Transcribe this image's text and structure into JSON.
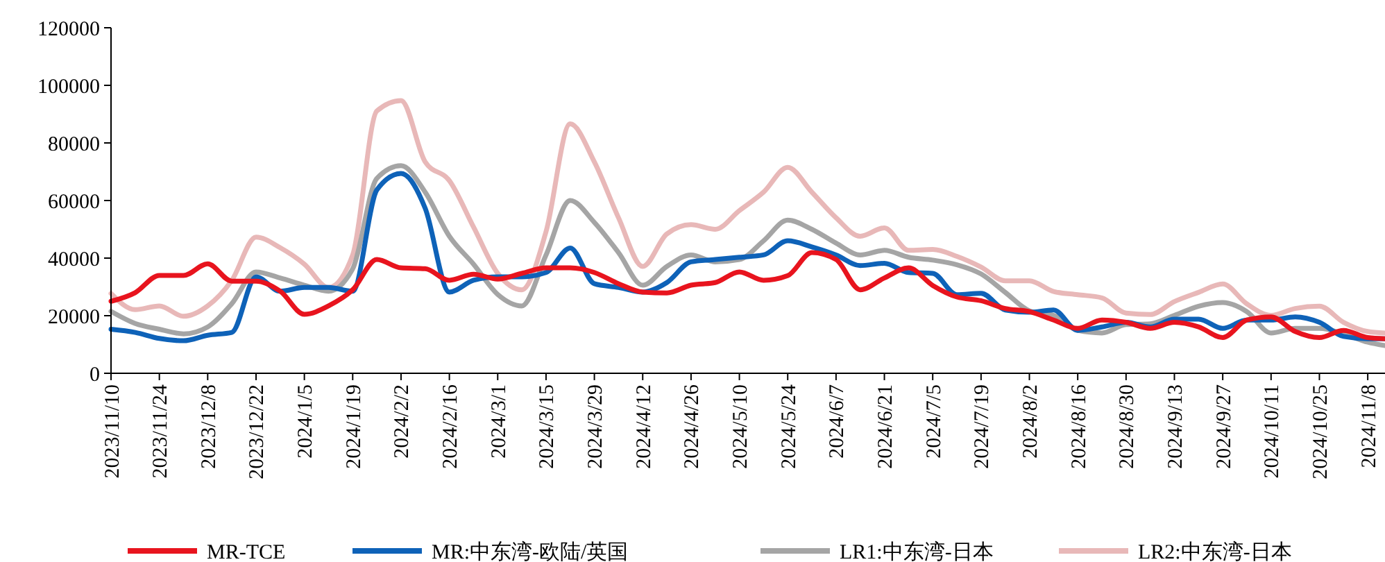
{
  "chart_data": {
    "type": "line",
    "x": [
      "2023-11-10",
      "2023-11-17",
      "2023-11-24",
      "2023-12-01",
      "2023-12-08",
      "2023-12-15",
      "2023-12-22",
      "2023-12-29",
      "2024-01-05",
      "2024-01-12",
      "2024-01-19",
      "2024-01-26",
      "2024-02-02",
      "2024-02-09",
      "2024-02-16",
      "2024-02-23",
      "2024-03-01",
      "2024-03-08",
      "2024-03-15",
      "2024-03-22",
      "2024-03-29",
      "2024-04-05",
      "2024-04-12",
      "2024-04-19",
      "2024-04-26",
      "2024-05-03",
      "2024-05-10",
      "2024-05-17",
      "2024-05-24",
      "2024-05-31",
      "2024-06-07",
      "2024-06-14",
      "2024-06-21",
      "2024-06-28",
      "2024-07-05",
      "2024-07-12",
      "2024-07-19",
      "2024-07-26",
      "2024-08-02",
      "2024-08-09",
      "2024-08-16",
      "2024-08-23",
      "2024-08-30",
      "2024-09-06",
      "2024-09-13",
      "2024-09-20",
      "2024-09-27",
      "2024-10-04",
      "2024-10-11",
      "2024-10-18",
      "2024-10-25",
      "2024-11-01",
      "2024-11-08",
      "2024-11-13"
    ],
    "series": [
      {
        "name": "MR-TCE",
        "color": "#e8141e",
        "values": [
          25000,
          28000,
          34000,
          34000,
          38000,
          32000,
          32000,
          28500,
          20500,
          23400,
          29000,
          39500,
          36600,
          36300,
          32300,
          34400,
          32700,
          34700,
          36600,
          36600,
          35000,
          31100,
          28200,
          27900,
          30600,
          31500,
          35200,
          32300,
          33900,
          41900,
          39500,
          29000,
          33100,
          36600,
          30500,
          26500,
          25200,
          22500,
          21400,
          18500,
          15600,
          18500,
          17700,
          15600,
          17700,
          16100,
          12400,
          18500,
          19600,
          14500,
          12400,
          14900,
          12400,
          12000
        ]
      },
      {
        "name": "MR:中东湾-欧陆/英国",
        "color": "#0e62b8",
        "values": [
          15300,
          14200,
          12100,
          11300,
          13200,
          14200,
          33500,
          28500,
          29800,
          29800,
          28500,
          63700,
          69400,
          57300,
          28200,
          32300,
          33500,
          33500,
          35000,
          43500,
          31100,
          29800,
          28200,
          31500,
          38700,
          39500,
          40300,
          41100,
          46000,
          43900,
          41100,
          37400,
          38200,
          35000,
          34700,
          27300,
          27800,
          22000,
          21200,
          22000,
          14900,
          16100,
          17700,
          16100,
          18800,
          18800,
          15600,
          18500,
          18500,
          19600,
          17700,
          12800,
          12000,
          12000
        ]
      },
      {
        "name": "LR1:中东湾-日本",
        "color": "#a5a5a5",
        "values": [
          21500,
          17300,
          15300,
          13700,
          16100,
          24200,
          35200,
          33100,
          30600,
          28500,
          36300,
          67700,
          72100,
          62900,
          47600,
          37900,
          27400,
          23400,
          41100,
          60000,
          52400,
          41900,
          30600,
          37100,
          41100,
          38700,
          39500,
          46000,
          53200,
          50000,
          45200,
          41100,
          42700,
          40300,
          39300,
          37700,
          34500,
          28100,
          21700,
          20100,
          14900,
          14000,
          16900,
          17200,
          20100,
          23300,
          24600,
          21400,
          14000,
          15600,
          15600,
          13700,
          10800,
          9600
        ]
      },
      {
        "name": "LR2:中东湾-日本",
        "color": "#e8b8b8",
        "values": [
          27700,
          22100,
          23400,
          19800,
          23400,
          32300,
          47300,
          43600,
          37900,
          29800,
          41100,
          91100,
          94700,
          73400,
          66900,
          50800,
          34700,
          29000,
          49200,
          86600,
          73400,
          54000,
          37100,
          48400,
          51600,
          50000,
          56500,
          62900,
          71500,
          62900,
          54000,
          47600,
          50500,
          42700,
          43000,
          40600,
          36900,
          32100,
          32100,
          28400,
          27300,
          26200,
          20900,
          20400,
          24900,
          28100,
          31000,
          24100,
          20100,
          22500,
          23300,
          17700,
          14500,
          14000
        ]
      }
    ],
    "xlim": [
      "2023-11-10",
      "2024-11-13"
    ],
    "xticks": [
      {
        "value": "2023-11-10",
        "label": "2023/11/10"
      },
      {
        "value": "2023-11-24",
        "label": "2023/11/24"
      },
      {
        "value": "2023-12-08",
        "label": "2023/12/8"
      },
      {
        "value": "2023-12-22",
        "label": "2023/12/22"
      },
      {
        "value": "2024-01-05",
        "label": "2024/1/5"
      },
      {
        "value": "2024-01-19",
        "label": "2024/1/19"
      },
      {
        "value": "2024-02-02",
        "label": "2024/2/2"
      },
      {
        "value": "2024-02-16",
        "label": "2024/2/16"
      },
      {
        "value": "2024-03-01",
        "label": "2024/3/1"
      },
      {
        "value": "2024-03-15",
        "label": "2024/3/15"
      },
      {
        "value": "2024-03-29",
        "label": "2024/3/29"
      },
      {
        "value": "2024-04-12",
        "label": "2024/4/12"
      },
      {
        "value": "2024-04-26",
        "label": "2024/4/26"
      },
      {
        "value": "2024-05-10",
        "label": "2024/5/10"
      },
      {
        "value": "2024-05-24",
        "label": "2024/5/24"
      },
      {
        "value": "2024-06-07",
        "label": "2024/6/7"
      },
      {
        "value": "2024-06-21",
        "label": "2024/6/21"
      },
      {
        "value": "2024-07-05",
        "label": "2024/7/5"
      },
      {
        "value": "2024-07-19",
        "label": "2024/7/19"
      },
      {
        "value": "2024-08-02",
        "label": "2024/8/2"
      },
      {
        "value": "2024-08-16",
        "label": "2024/8/16"
      },
      {
        "value": "2024-08-30",
        "label": "2024/8/30"
      },
      {
        "value": "2024-09-13",
        "label": "2024/9/13"
      },
      {
        "value": "2024-09-27",
        "label": "2024/9/27"
      },
      {
        "value": "2024-10-11",
        "label": "2024/10/11"
      },
      {
        "value": "2024-10-25",
        "label": "2024/10/25"
      },
      {
        "value": "2024-11-08",
        "label": "2024/11/8"
      }
    ],
    "ylim": [
      0,
      120000
    ],
    "yticks": [
      0,
      20000,
      40000,
      60000,
      80000,
      100000,
      120000
    ],
    "grid": false,
    "legend": "bottom",
    "marker": "none",
    "line_style": "solid"
  }
}
